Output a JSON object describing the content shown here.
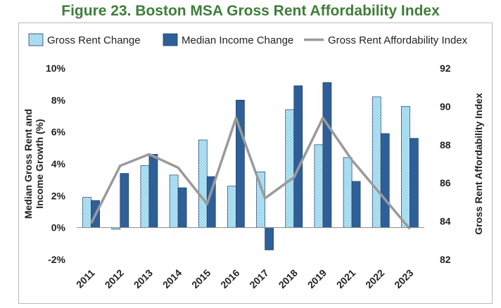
{
  "figure_title": "Figure 23. Boston MSA Gross Rent Affordability Index",
  "colors": {
    "title": "#3f7d3a",
    "gross_rent_fill": "#8fd3ec",
    "gross_rent_dots": "#ffffff",
    "median_income_fill": "#2f5f98",
    "affordability_line": "#9a9a9a",
    "bar_outline": "#1f3e66"
  },
  "chart_data": {
    "type": "bar",
    "categories": [
      "2011",
      "2012",
      "2013",
      "2014",
      "2015",
      "2016",
      "2017",
      "2018",
      "2019",
      "2021",
      "2022",
      "2023"
    ],
    "series": [
      {
        "name": "Gross Rent Change",
        "type": "bar",
        "axis": "left",
        "values": [
          1.9,
          -0.1,
          3.9,
          3.3,
          5.5,
          2.6,
          3.5,
          7.4,
          5.2,
          4.4,
          8.2,
          7.6
        ]
      },
      {
        "name": "Median Income Change",
        "type": "bar",
        "axis": "left",
        "values": [
          1.7,
          3.4,
          4.6,
          2.5,
          3.2,
          8.0,
          -1.4,
          8.9,
          9.1,
          2.9,
          5.9,
          5.6
        ]
      },
      {
        "name": "Gross Rent Affordability Index",
        "type": "line",
        "axis": "right",
        "values": [
          83.9,
          86.9,
          87.5,
          86.8,
          84.9,
          89.4,
          85.2,
          86.3,
          89.4,
          87.2,
          85.4,
          83.6
        ]
      }
    ],
    "ylabel_left": "Median Gross Rent and Income Growth (%)",
    "ylabel_right": "Gross Rent Affordability Index",
    "ylim_left": [
      -2,
      10
    ],
    "ylim_right": [
      82,
      92
    ],
    "yticks_left": [
      "-2%",
      "0%",
      "2%",
      "4%",
      "6%",
      "8%",
      "10%"
    ],
    "yticks_right": [
      "82",
      "84",
      "86",
      "88",
      "90",
      "92"
    ],
    "legend_position": "top",
    "grid": false
  }
}
